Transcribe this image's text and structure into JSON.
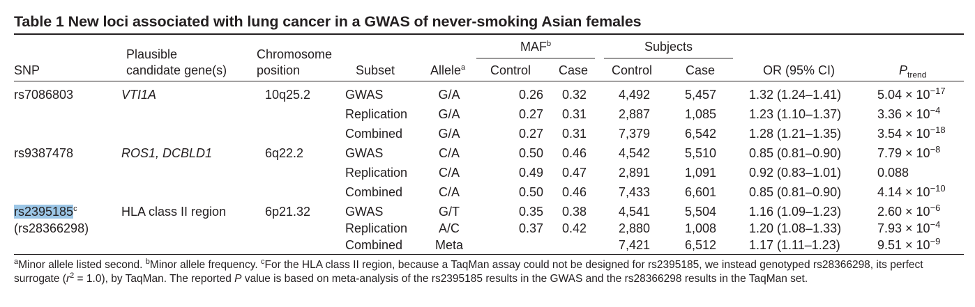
{
  "title": "Table 1  New loci associated with lung cancer in a GWAS of never-smoking Asian females",
  "headers": {
    "snp": "SNP",
    "gene_line1": "Plausible",
    "gene_line2": "candidate gene(s)",
    "chrom_line1": "Chromosome",
    "chrom_line2": "position",
    "subset": "Subset",
    "allele": "Allele",
    "allele_sup": "a",
    "maf": "MAF",
    "maf_sup": "b",
    "subjects": "Subjects",
    "control": "Control",
    "case": "Case",
    "or": "OR (95% CI)",
    "p_main": "P",
    "p_sub": "trend"
  },
  "rows": [
    {
      "snp": "rs7086803",
      "gene": "VTI1A",
      "chrom": "10q25.2",
      "subset": "GWAS",
      "allele": "G/A",
      "maf_control": "0.26",
      "maf_case": "0.32",
      "subj_control": "4,492",
      "subj_case": "5,457",
      "or": "1.32 (1.24–1.41)",
      "p_base": "5.04 × 10",
      "p_exp": "−17"
    },
    {
      "snp": "",
      "gene": "",
      "chrom": "",
      "subset": "Replication",
      "allele": "G/A",
      "maf_control": "0.27",
      "maf_case": "0.31",
      "subj_control": "2,887",
      "subj_case": "1,085",
      "or": "1.23 (1.10–1.37)",
      "p_base": "3.36 × 10",
      "p_exp": "−4"
    },
    {
      "snp": "",
      "gene": "",
      "chrom": "",
      "subset": "Combined",
      "allele": "G/A",
      "maf_control": "0.27",
      "maf_case": "0.31",
      "subj_control": "7,379",
      "subj_case": "6,542",
      "or": "1.28 (1.21–1.35)",
      "p_base": "3.54 × 10",
      "p_exp": "−18"
    },
    {
      "snp": "rs9387478",
      "gene": "ROS1, DCBLD1",
      "chrom": "6q22.2",
      "subset": "GWAS",
      "allele": "C/A",
      "maf_control": "0.50",
      "maf_case": "0.46",
      "subj_control": "4,542",
      "subj_case": "5,510",
      "or": "0.85 (0.81–0.90)",
      "p_base": "7.79 × 10",
      "p_exp": "−8"
    },
    {
      "snp": "",
      "gene": "",
      "chrom": "",
      "subset": "Replication",
      "allele": "C/A",
      "maf_control": "0.49",
      "maf_case": "0.47",
      "subj_control": "2,891",
      "subj_case": "1,091",
      "or": "0.92 (0.83–1.01)",
      "p_base": "0.088",
      "p_exp": ""
    },
    {
      "snp": "",
      "gene": "",
      "chrom": "",
      "subset": "Combined",
      "allele": "C/A",
      "maf_control": "0.50",
      "maf_case": "0.46",
      "subj_control": "7,433",
      "subj_case": "6,601",
      "or": "0.85 (0.81–0.90)",
      "p_base": "4.14 × 10",
      "p_exp": "−10"
    },
    {
      "snp": "rs2395185",
      "snp_sup": "c",
      "gene": "HLA class II region",
      "chrom": "6p21.32",
      "subset": "GWAS",
      "allele": "G/T",
      "maf_control": "0.35",
      "maf_case": "0.38",
      "subj_control": "4,541",
      "subj_case": "5,504",
      "or": "1.16 (1.09–1.23)",
      "p_base": "2.60 × 10",
      "p_exp": "−6"
    },
    {
      "snp": "(rs28366298)",
      "gene": "",
      "chrom": "",
      "subset": "Replication",
      "allele": "A/C",
      "maf_control": "0.37",
      "maf_case": "0.42",
      "subj_control": "2,880",
      "subj_case": "1,008",
      "or": "1.20 (1.08–1.33)",
      "p_base": "7.93 × 10",
      "p_exp": "−4"
    },
    {
      "snp": "",
      "gene": "",
      "chrom": "",
      "subset": "Combined",
      "allele": "Meta",
      "maf_control": "",
      "maf_case": "",
      "subj_control": "7,421",
      "subj_case": "6,512",
      "or": "1.17 (1.11–1.23)",
      "p_base": "9.51 × 10",
      "p_exp": "−9"
    }
  ],
  "footnote": {
    "a_mark": "a",
    "a_text": "Minor allele listed second. ",
    "b_mark": "b",
    "b_text": "Minor allele frequency. ",
    "c_mark": "c",
    "c_text1": "For the HLA class II region, because a TaqMan assay could not be designed for rs2395185, we instead genotyped rs28366298, its perfect surrogate (",
    "r_italic": "r",
    "r_sup": "2",
    "c_text2": " = 1.0), by TaqMan. The reported ",
    "p_italic": "P",
    "c_text3": " value is based on meta-analysis of the rs2395185 results in the GWAS and the rs28366298 results in the TaqMan set."
  }
}
